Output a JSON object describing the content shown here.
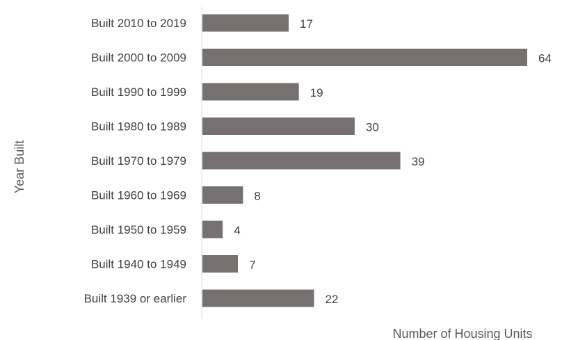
{
  "chart_data": {
    "type": "bar",
    "orientation": "horizontal",
    "categories": [
      "Built 2010 to 2019",
      "Built 2000 to 2009",
      "Built 1990 to 1999",
      "Built 1980 to 1989",
      "Built 1970 to 1979",
      "Built 1960 to 1969",
      "Built 1950 to 1959",
      "Built 1940 to 1949",
      "Built 1939 or earlier"
    ],
    "values": [
      17,
      64,
      19,
      30,
      39,
      8,
      4,
      7,
      22
    ],
    "title": "",
    "xlabel": "Number of Housing Units",
    "ylabel": "Year Built",
    "xlim": [
      0,
      64
    ],
    "grid": false,
    "legend": "none",
    "bar_color": "#767171",
    "axis_color": "#d9d9d9"
  }
}
